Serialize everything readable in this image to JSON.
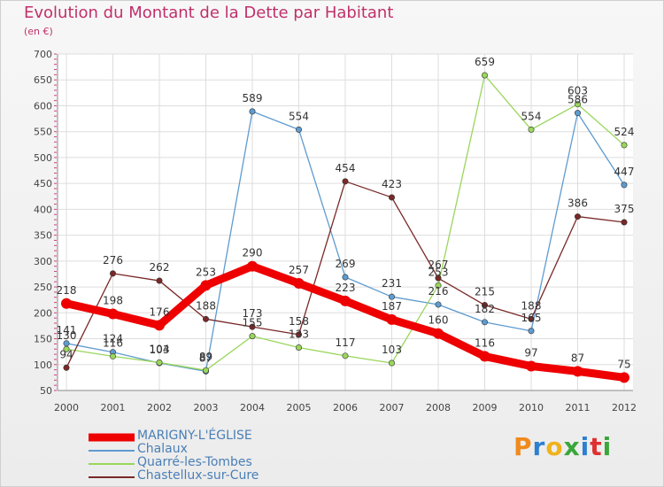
{
  "header": {
    "title": "Evolution du Montant de la Dette par Habitant",
    "subtitle": "(en €)"
  },
  "logo": {
    "letters": [
      "P",
      "r",
      "o",
      "x",
      "i",
      "t",
      "i"
    ],
    "colors": [
      "#f08a1c",
      "#2d7fd0",
      "#f0b21c",
      "#3aa63a",
      "#2d7fd0",
      "#e03030",
      "#3aa63a"
    ]
  },
  "chart_data": {
    "type": "line",
    "title": "Evolution du Montant de la Dette par Habitant",
    "subtitle": "(en €)",
    "x": [
      "2000",
      "2001",
      "2002",
      "2003",
      "2004",
      "2005",
      "2006",
      "2007",
      "2008",
      "2009",
      "2010",
      "2011",
      "2012"
    ],
    "ylim": [
      50,
      700
    ],
    "yticks": [
      50,
      100,
      150,
      200,
      250,
      300,
      350,
      400,
      450,
      500,
      550,
      600,
      650,
      700
    ],
    "grid": true,
    "legend": "bottom-left",
    "series": [
      {
        "name": "MARIGNY-L'ÉGLISE",
        "color": "#ee0000",
        "thick": true,
        "values": [
          218,
          198,
          176,
          253,
          290,
          257,
          223,
          187,
          160,
          116,
          97,
          87,
          75
        ]
      },
      {
        "name": "Chalaux",
        "color": "#5e9bd0",
        "values": [
          141,
          124,
          103,
          87,
          589,
          554,
          269,
          231,
          216,
          182,
          165,
          586,
          447
        ]
      },
      {
        "name": "Quarré-les-Tombes",
        "color": "#9ad65c",
        "values": [
          130,
          116,
          104,
          89,
          155,
          133,
          117,
          103,
          253,
          659,
          554,
          603,
          524
        ]
      },
      {
        "name": "Chastellux-sur-Cure",
        "color": "#7a2828",
        "values": [
          94,
          276,
          262,
          188,
          173,
          158,
          454,
          423,
          267,
          215,
          188,
          386,
          375
        ]
      }
    ]
  }
}
